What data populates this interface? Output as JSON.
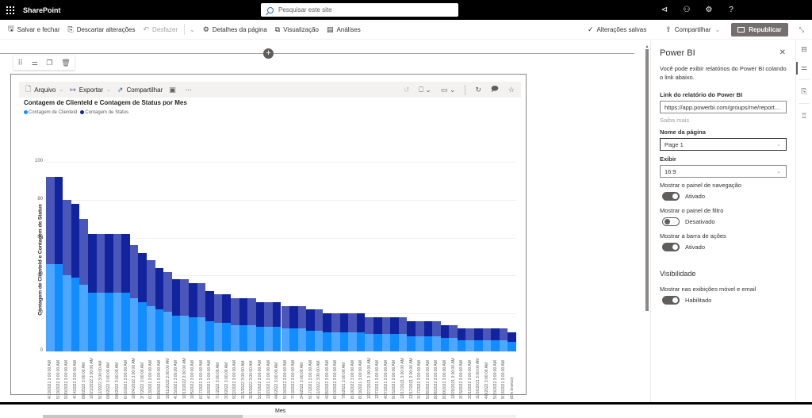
{
  "suite": {
    "app_name": "SharePoint",
    "search_placeholder": "Pesquisar este site",
    "icons": [
      "megaphone-icon",
      "people-icon",
      "gear-icon",
      "help-icon"
    ],
    "icon_glyphs": [
      "⊲",
      "⚇",
      "⚙",
      "?"
    ]
  },
  "commandbar": {
    "save_close": "Salvar e fechar",
    "discard": "Descartar alterações",
    "undo": "Desfazer",
    "page_details": "Detalhes da página",
    "preview": "Visualização",
    "analytics": "Análises",
    "saved_status": "Alterações salvas",
    "share": "Compartilhar",
    "republish": "Republicar"
  },
  "webpart": {
    "toolbar": {
      "file": "Arquivo",
      "export": "Exportar",
      "share": "Compartilhar",
      "more": "···"
    },
    "colors": {
      "clientid": "#118DFF",
      "status": "#12239E",
      "clientid_light": "#4da6ff",
      "status_light": "#4a57b8"
    }
  },
  "chart_data": {
    "type": "bar",
    "stacked": true,
    "title": "Contagem de ClienteId e Contagem de Status por Mes",
    "xlabel": "Mes",
    "ylabel": "Contagem de ClienteId e Contagem de Status",
    "ylim": [
      0,
      100
    ],
    "yticks": [
      0,
      20,
      40,
      60,
      80,
      100
    ],
    "grid": true,
    "legend_position": "top-left",
    "legend": [
      "Contagem de ClienteId",
      "Contagem de Status"
    ],
    "categories": [
      "4/19/2021 3:00:00 AM",
      "5/19/2022 3:00:00 AM",
      "9/20/2022 3:00:00 AM",
      "4/14/2022 3:00:00 AM",
      "8/8/2022 3:00:00 AM",
      "10/21/2022 3:00:00 AM",
      "5/11/2022 3:00:00 AM",
      "6/8/2022 3:00:00 AM",
      "9/8/2022 3:00:00 AM",
      "6/16/2021 3:00:00 AM",
      "10/24/2022 3:00:00 AM",
      "3/7/2022 3:00:00 AM",
      "6/13/2021 3:00:00 AM",
      "9/30/2021 3:00:00 AM",
      "10/11/2022 3:00:00 AM",
      "4/15/2021 3:00:00 AM",
      "10/13/2022 3:00:00 AM",
      "10/5/2022 3:00:00 AM",
      "6/17/2022 3:00:00 AM",
      "4/18/2021 3:00:00 AM",
      "7/1/2022 3:00:00 AM",
      "3/3/2022 3:00:00 AM",
      "9/22/2022 3:00:00 AM",
      "11/1/2022 3:00:00 AM",
      "11/3/2022 3:00:00 AM",
      "5/27/2022 3:00:00 AM",
      "12/2/2021 3:00:00 AM",
      "4/6/2022 3:00:00 AM",
      "5/19/2022 3:00:00 AM",
      "7/13/2022 3:00:00 AM",
      "3/4/2022 3:00:00 AM",
      "5/17/2021 3:00:00 AM",
      "4/11/2022 3:00:00 AM",
      "4/28/2022 3:00:00 AM",
      "6/10/2022 3:00:00 AM",
      "7/5/2021 3:00:00 AM",
      "8/10/2022 3:00:00 AM",
      "8/19/2021 3:00:00 AM",
      "10/27/2021 3:00:00 AM",
      "12/7/2021 3:00:00 AM",
      "4/27/2021 3:00:00 AM",
      "9/15/2021 3:00:00 AM",
      "12/17/2021 3:00:00 AM",
      "12/17/2021 3:00:00 AM",
      "3/17/2022 3:00:00 AM",
      "5/28/2022 3:00:00 AM",
      "8/26/2022 3:00:00 AM",
      "8/30/2022 3:00:00 AM",
      "12/20/2021 3:00:00 AM",
      "3/15/2022 3:00:00 AM",
      "3/21/2022 3:00:00 AM",
      "11/16/2021 3:00:00 AM",
      "4/8/2022 3:00:00 AM",
      "5/20/2022 3:00:00 AM",
      "9/16/2021 3:00:00 AM",
      "(Em branco)"
    ],
    "series": [
      {
        "name": "Contagem de ClienteId",
        "values": [
          46,
          46,
          40,
          39,
          35,
          31,
          31,
          31,
          31,
          31,
          28,
          26,
          24,
          22,
          21,
          19,
          19,
          18,
          18,
          16,
          15,
          15,
          14,
          14,
          14,
          13,
          13,
          13,
          12,
          12,
          12,
          11,
          11,
          10,
          10,
          10,
          10,
          10,
          9,
          9,
          9,
          9,
          9,
          8,
          8,
          8,
          8,
          7,
          7,
          6,
          6,
          6,
          6,
          6,
          6,
          5
        ]
      },
      {
        "name": "Contagem de Status",
        "values": [
          46,
          46,
          40,
          39,
          35,
          31,
          31,
          31,
          31,
          31,
          28,
          26,
          24,
          22,
          21,
          19,
          19,
          18,
          18,
          16,
          15,
          15,
          14,
          14,
          14,
          13,
          13,
          13,
          12,
          12,
          12,
          11,
          11,
          10,
          10,
          10,
          10,
          10,
          9,
          9,
          9,
          9,
          9,
          8,
          8,
          8,
          8,
          7,
          7,
          6,
          6,
          6,
          6,
          6,
          6,
          5
        ]
      }
    ]
  },
  "panel": {
    "title": "Power BI",
    "description": "Você pode exibir relatórios do Power BI colando o link abaixo.",
    "link_label": "Link do relatório do Power BI",
    "link_value": "https://app.powerbi.com/groups/me/report...",
    "learn_more": "Saiba mais",
    "page_name_label": "Nome da página",
    "page_name_value": "Page 1",
    "display_label": "Exibir",
    "display_value": "16:9",
    "nav_pane_label": "Mostrar o painel de navegação",
    "nav_pane_state": "Ativado",
    "filter_pane_label": "Mostrar o painel de filtro",
    "filter_pane_state": "Desativado",
    "action_bar_label": "Mostrar a barra de ações",
    "action_bar_state": "Ativado",
    "visibility_heading": "Visibilidade",
    "mobile_email_label": "Mostrar nas exibições móvel e email",
    "mobile_email_state": "Habilitado"
  }
}
